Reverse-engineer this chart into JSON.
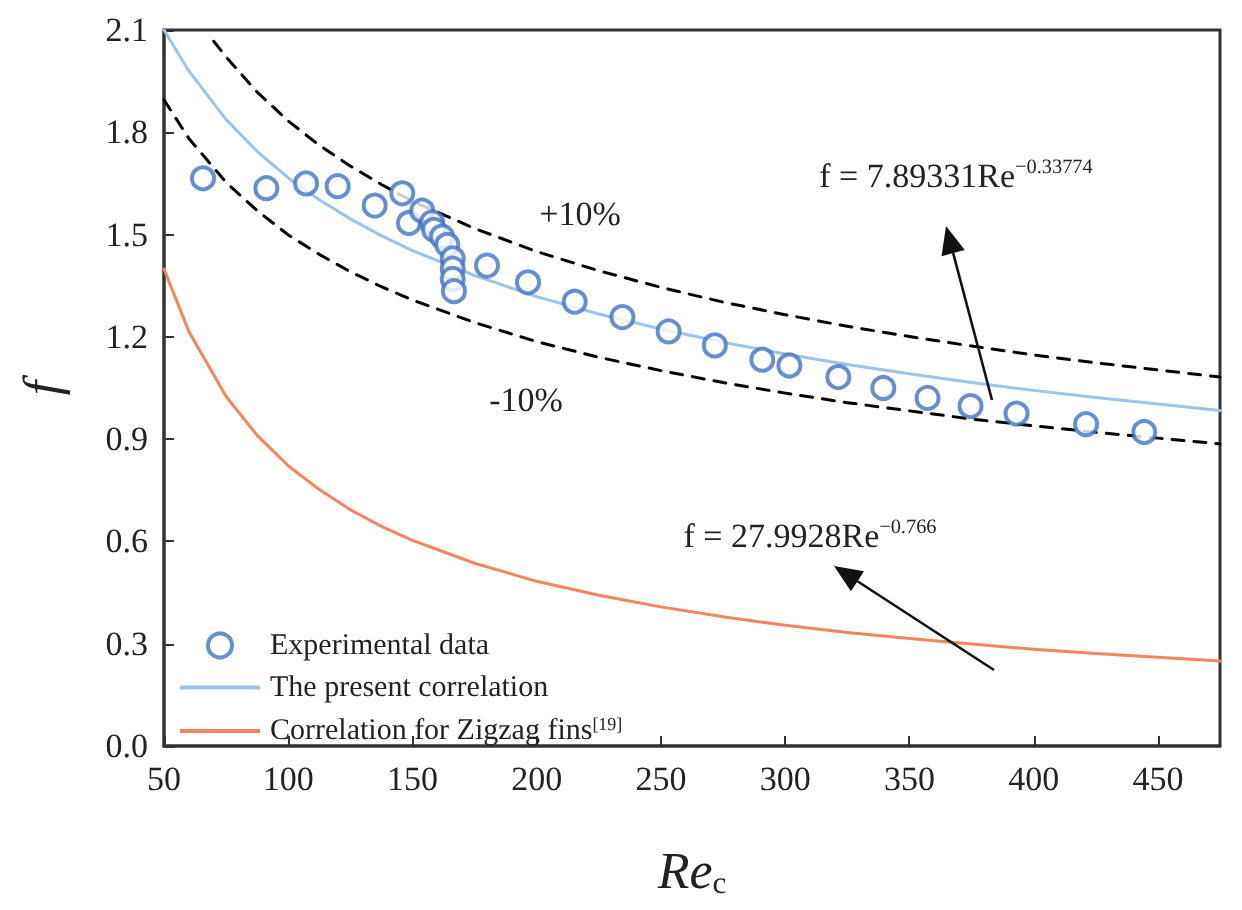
{
  "chart_data": {
    "type": "scatter",
    "xlabel": "Re$_{c}$",
    "ylabel": "f",
    "xlim": [
      50,
      475
    ],
    "xticks": [
      50,
      100,
      150,
      200,
      250,
      300,
      350,
      400,
      450
    ],
    "ylim": [
      0,
      2.1
    ],
    "yticks": [
      {
        "value": 0,
        "label": "0.0"
      },
      0.3,
      0.6,
      0.9,
      1.2,
      1.5,
      1.8,
      2.1
    ],
    "grid": false,
    "legend": "bottom left",
    "series": [
      {
        "name": "Experimental data",
        "marker": "circle",
        "color": "#4472c4",
        "x": [
          65.7,
          91.2,
          107.2,
          119.9,
          134.8,
          145.9,
          148.6,
          153.9,
          157.9,
          158.7,
          161.9,
          164,
          166.2,
          166.2,
          166.2,
          166.7,
          180,
          196.5,
          215.3,
          234.5,
          253.1,
          271.7,
          290.8,
          301.7,
          321.4,
          339.5,
          357.3,
          374.6,
          393.1,
          421.1,
          444.5
        ],
        "values": [
          1.665,
          1.636,
          1.65,
          1.642,
          1.585,
          1.621,
          1.534,
          1.57,
          1.536,
          1.514,
          1.494,
          1.47,
          1.43,
          1.4,
          1.37,
          1.334,
          1.409,
          1.36,
          1.303,
          1.258,
          1.216,
          1.175,
          1.133,
          1.116,
          1.082,
          1.05,
          1.021,
          0.997,
          0.975,
          0.944,
          0.921
        ]
      },
      {
        "name": "The present correlation",
        "type": "line",
        "marker": "none",
        "line_style": "solid",
        "color": "#9dc3e6",
        "x": [
          50,
          60,
          75,
          87.5,
          100,
          112.5,
          125,
          137.5,
          150,
          175,
          200,
          225,
          250,
          275,
          300,
          325,
          350,
          375,
          400,
          425,
          450,
          475
        ],
        "values": [
          2.1,
          1.98,
          1.837,
          1.744,
          1.666,
          1.602,
          1.546,
          1.497,
          1.453,
          1.38,
          1.318,
          1.267,
          1.223,
          1.184,
          1.15,
          1.119,
          1.092,
          1.066,
          1.043,
          1.022,
          1.003,
          0.984
        ]
      },
      {
        "type": "line",
        "marker": "none",
        "line_style": "dashed",
        "color": "#000000",
        "x": [
          70,
          75,
          87.5,
          100,
          112.5,
          125,
          137.5,
          150,
          175,
          200,
          225,
          250,
          275,
          300,
          325,
          350,
          375,
          400,
          425,
          450,
          475
        ],
        "values": [
          2.067,
          2.021,
          1.918,
          1.833,
          1.762,
          1.701,
          1.647,
          1.598,
          1.518,
          1.45,
          1.394,
          1.345,
          1.302,
          1.265,
          1.231,
          1.201,
          1.173,
          1.147,
          1.124,
          1.103,
          1.082
        ]
      },
      {
        "type": "line",
        "marker": "none",
        "line_style": "dashed",
        "color": "#000000",
        "x": [
          50,
          60,
          75,
          87.5,
          100,
          112.5,
          125,
          137.5,
          150,
          175,
          200,
          225,
          250,
          275,
          300,
          325,
          350,
          375,
          400,
          425,
          450,
          475
        ],
        "values": [
          1.895,
          1.782,
          1.653,
          1.57,
          1.499,
          1.442,
          1.391,
          1.347,
          1.308,
          1.242,
          1.186,
          1.14,
          1.101,
          1.066,
          1.035,
          1.007,
          0.983,
          0.959,
          0.939,
          0.92,
          0.903,
          0.886
        ]
      },
      {
        "name": "Correlation for Zigzag fins$^{[19]}$",
        "type": "line",
        "marker": "none",
        "line_style": "solid",
        "color": "#f4845f",
        "x": [
          50,
          60,
          75,
          87.5,
          100,
          112.5,
          125,
          137.5,
          150,
          175,
          200,
          225,
          250,
          275,
          300,
          325,
          350,
          375,
          400,
          425,
          450,
          475
        ],
        "values": [
          1.399,
          1.216,
          1.025,
          0.911,
          0.822,
          0.752,
          0.693,
          0.644,
          0.603,
          0.536,
          0.483,
          0.442,
          0.408,
          0.379,
          0.354,
          0.333,
          0.315,
          0.299,
          0.284,
          0.271,
          0.26,
          0.249
        ]
      }
    ],
    "annotations": [
      "+10%",
      "-10%",
      "f = 7.89331Re$^{−0.33774}$",
      "f = 27.9928Re$^{−0.766}$"
    ]
  }
}
